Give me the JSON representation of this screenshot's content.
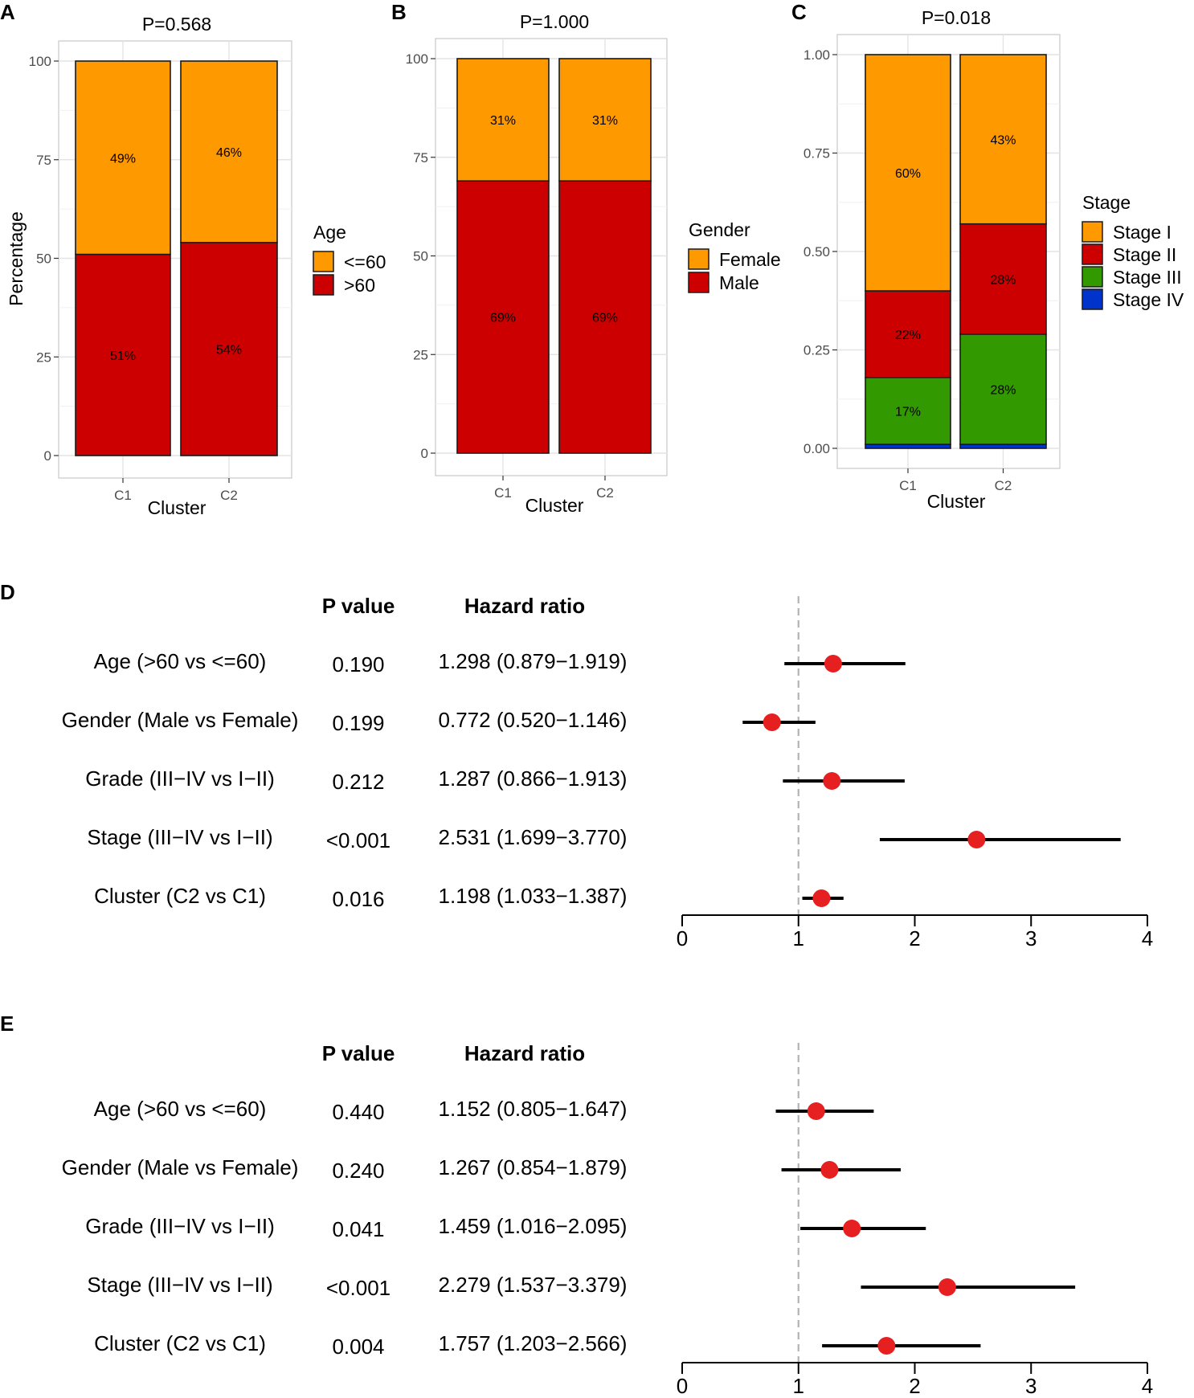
{
  "panel_labels": [
    "A",
    "B",
    "C",
    "D",
    "E"
  ],
  "chart_data": [
    {
      "type": "bar",
      "stacked": true,
      "title": "P=0.568",
      "xlabel": "Cluster",
      "ylabel": "Percentage",
      "categories": [
        "C1",
        "C2"
      ],
      "yticks": [
        "0",
        "25",
        "50",
        "75",
        "100"
      ],
      "ylim": [
        0,
        100
      ],
      "legend_title": "Age",
      "series": [
        {
          "name": ">60",
          "color": "#CC0000",
          "values": [
            51,
            54
          ],
          "labels": [
            "51%",
            "54%"
          ]
        },
        {
          "name": "<=60",
          "color": "#FF9900",
          "values": [
            49,
            46
          ],
          "labels": [
            "49%",
            "46%"
          ]
        }
      ],
      "legend_order": [
        "<=60",
        ">60"
      ]
    },
    {
      "type": "bar",
      "stacked": true,
      "title": "P=1.000",
      "xlabel": "Cluster",
      "ylabel": "",
      "categories": [
        "C1",
        "C2"
      ],
      "yticks": [
        "0",
        "25",
        "50",
        "75",
        "100"
      ],
      "ylim": [
        0,
        100
      ],
      "legend_title": "Gender",
      "series": [
        {
          "name": "Male",
          "color": "#CC0000",
          "values": [
            69,
            69
          ],
          "labels": [
            "69%",
            "69%"
          ]
        },
        {
          "name": "Female",
          "color": "#FF9900",
          "values": [
            31,
            31
          ],
          "labels": [
            "31%",
            "31%"
          ]
        }
      ],
      "legend_order": [
        "Female",
        "Male"
      ]
    },
    {
      "type": "bar",
      "stacked": true,
      "title": "P=0.018",
      "xlabel": "Cluster",
      "ylabel": "",
      "categories": [
        "C1",
        "C2"
      ],
      "yticks": [
        "0.00",
        "0.25",
        "0.50",
        "0.75",
        "1.00"
      ],
      "ylim": [
        0,
        1
      ],
      "legend_title": "Stage",
      "series": [
        {
          "name": "Stage IV",
          "color": "#0033CC",
          "values": [
            0.01,
            0.01
          ],
          "labels": [
            "",
            ""
          ]
        },
        {
          "name": "Stage III",
          "color": "#339900",
          "values": [
            0.17,
            0.28
          ],
          "labels": [
            "17%",
            "28%"
          ]
        },
        {
          "name": "Stage II",
          "color": "#CC0000",
          "values": [
            0.22,
            0.28
          ],
          "labels": [
            "22%",
            "28%"
          ]
        },
        {
          "name": "Stage I",
          "color": "#FF9900",
          "values": [
            0.6,
            0.43
          ],
          "labels": [
            "60%",
            "43%"
          ]
        }
      ],
      "legend_order": [
        "Stage I",
        "Stage II",
        "Stage III",
        "Stage IV"
      ]
    },
    {
      "type": "forest",
      "header_p": "P value",
      "header_hr": "Hazard ratio",
      "xticks": [
        "0",
        "1",
        "2",
        "3",
        "4"
      ],
      "xlim": [
        0,
        4
      ],
      "ref_line": 1,
      "rows": [
        {
          "name": "Age (>60 vs <=60)",
          "p": "0.190",
          "hr_text": "1.298 (0.879−1.919)",
          "hr": 1.298,
          "lo": 0.879,
          "hi": 1.919
        },
        {
          "name": "Gender (Male vs Female)",
          "p": "0.199",
          "hr_text": "0.772 (0.520−1.146)",
          "hr": 0.772,
          "lo": 0.52,
          "hi": 1.146
        },
        {
          "name": "Grade (III−IV vs I−II)",
          "p": "0.212",
          "hr_text": "1.287 (0.866−1.913)",
          "hr": 1.287,
          "lo": 0.866,
          "hi": 1.913
        },
        {
          "name": "Stage (III−IV vs I−II)",
          "p": "<0.001",
          "hr_text": "2.531 (1.699−3.770)",
          "hr": 2.531,
          "lo": 1.699,
          "hi": 3.77
        },
        {
          "name": "Cluster (C2 vs C1)",
          "p": "0.016",
          "hr_text": "1.198 (1.033−1.387)",
          "hr": 1.198,
          "lo": 1.033,
          "hi": 1.387
        }
      ]
    },
    {
      "type": "forest",
      "header_p": "P value",
      "header_hr": "Hazard ratio",
      "xticks": [
        "0",
        "1",
        "2",
        "3",
        "4"
      ],
      "xlim": [
        0,
        4
      ],
      "ref_line": 1,
      "rows": [
        {
          "name": "Age (>60 vs <=60)",
          "p": "0.440",
          "hr_text": "1.152 (0.805−1.647)",
          "hr": 1.152,
          "lo": 0.805,
          "hi": 1.647
        },
        {
          "name": "Gender (Male vs Female)",
          "p": "0.240",
          "hr_text": "1.267 (0.854−1.879)",
          "hr": 1.267,
          "lo": 0.854,
          "hi": 1.879
        },
        {
          "name": "Grade (III−IV vs I−II)",
          "p": "0.041",
          "hr_text": "1.459 (1.016−2.095)",
          "hr": 1.459,
          "lo": 1.016,
          "hi": 2.095
        },
        {
          "name": "Stage (III−IV vs I−II)",
          "p": "<0.001",
          "hr_text": "2.279 (1.537−3.379)",
          "hr": 2.279,
          "lo": 1.537,
          "hi": 3.379
        },
        {
          "name": "Cluster (C2 vs C1)",
          "p": "0.004",
          "hr_text": "1.757 (1.203−2.566)",
          "hr": 1.757,
          "lo": 1.203,
          "hi": 2.566
        }
      ]
    }
  ]
}
